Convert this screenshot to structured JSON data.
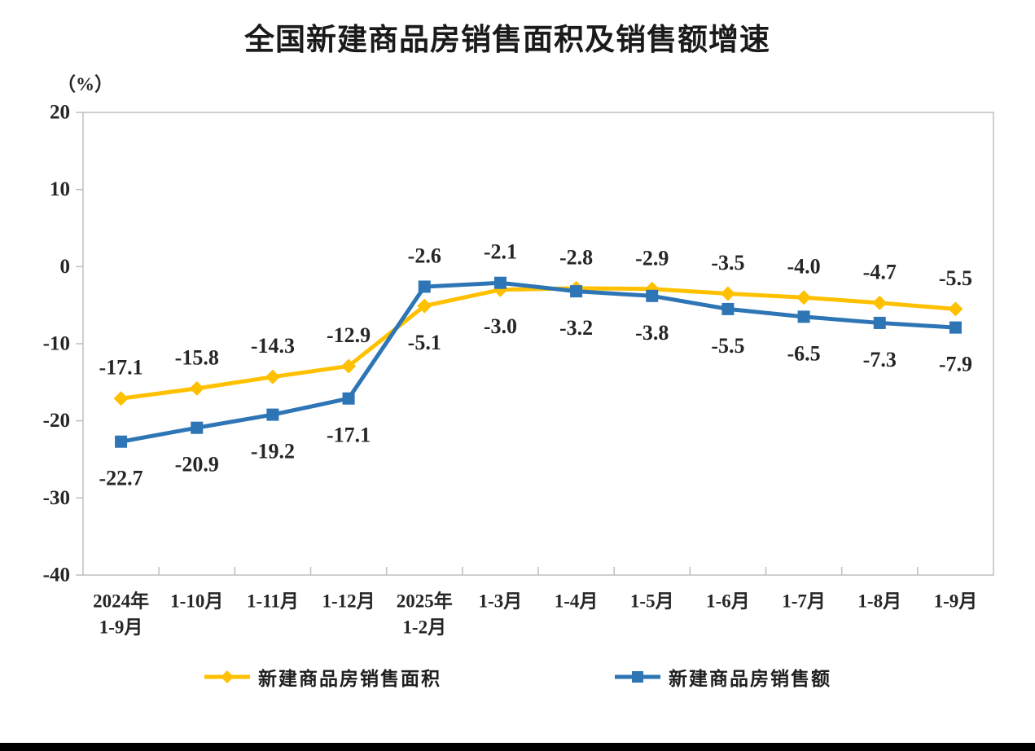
{
  "page": {
    "background_color": "#ffffff",
    "footer_bar_color": "#000000"
  },
  "chart_data": {
    "type": "line",
    "title": "全国新建商品房销售面积及销售额增速",
    "ylabel": "（%）",
    "xlabel": "",
    "categories": [
      [
        "2024年",
        "1-9月"
      ],
      [
        "1-10月"
      ],
      [
        "1-11月"
      ],
      [
        "1-12月"
      ],
      [
        "2025年",
        "1-2月"
      ],
      [
        "1-3月"
      ],
      [
        "1-4月"
      ],
      [
        "1-5月"
      ],
      [
        "1-6月"
      ],
      [
        "1-7月"
      ],
      [
        "1-8月"
      ],
      [
        "1-9月"
      ]
    ],
    "series": [
      {
        "name": "新建商品房销售面积",
        "color": "#FFC000",
        "marker": "diamond",
        "values": [
          -17.1,
          -15.8,
          -14.3,
          -12.9,
          -5.1,
          -3.0,
          -2.8,
          -2.9,
          -3.5,
          -4.0,
          -4.7,
          -5.5
        ]
      },
      {
        "name": "新建商品房销售额",
        "color": "#2E75B6",
        "marker": "square",
        "values": [
          -22.7,
          -20.9,
          -19.2,
          -17.1,
          -2.6,
          -2.1,
          -3.2,
          -3.8,
          -5.5,
          -6.5,
          -7.3,
          -7.9
        ]
      }
    ],
    "yticks": [
      20,
      10,
      0,
      -10,
      -20,
      -30,
      -40
    ],
    "ylim": [
      -40,
      20
    ],
    "grid": false,
    "data_labels": true,
    "legend_position": "bottom",
    "axis_color": "#BFBFBF",
    "text_color": "#262626"
  }
}
